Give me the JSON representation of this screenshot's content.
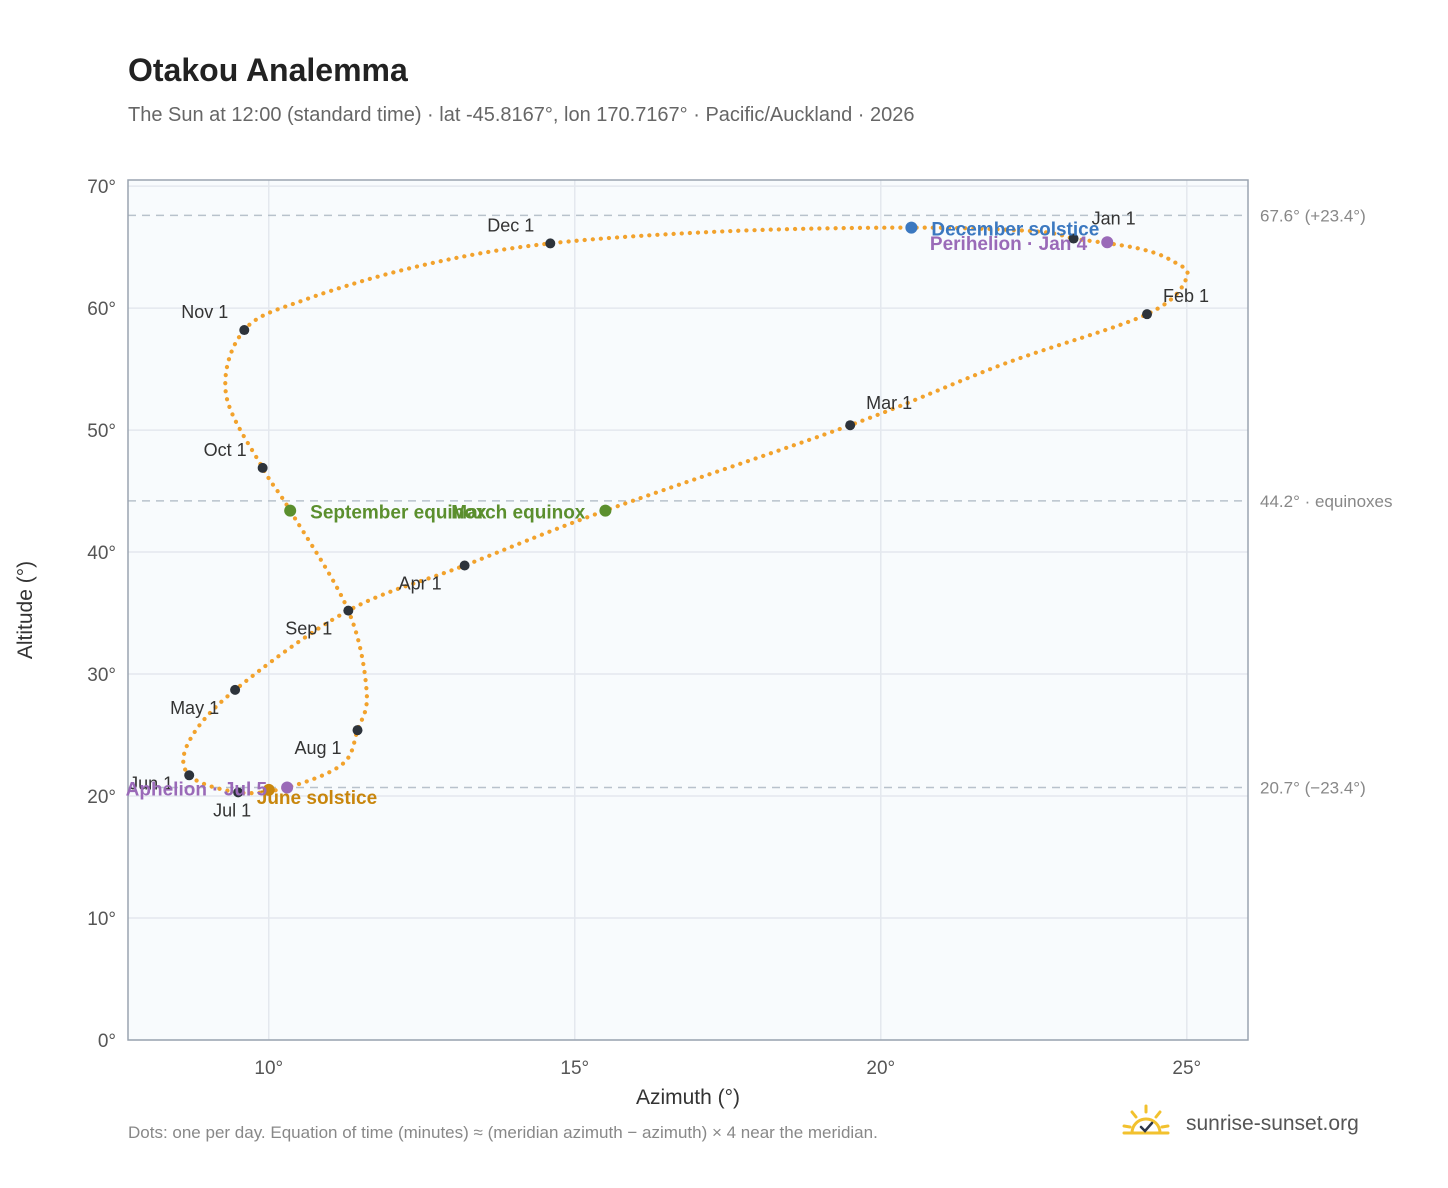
{
  "header": {
    "title": "Otakou Analemma",
    "subtitle": "The Sun at 12:00 (standard time) · lat -45.8167°, lon 170.7167° · Pacific/Auckland · 2026"
  },
  "footer": {
    "note": "Dots: one per day. Equation of time (minutes) ≈ (meridian azimuth − azimuth) × 4 near the meridian.",
    "brand": "sunrise-sunset.org"
  },
  "colors": {
    "curve": "#f2a22c",
    "month_dot": "#2d333b",
    "equinox": "#5b8f2e",
    "solstice_dec": "#3b78c0",
    "solstice_jun": "#c8860d",
    "aphelion_perihelion": "#9a6ab8",
    "grid": "#e4e8ee",
    "plot_bg": "#f8fbfd",
    "ref_line": "#b8c2cc"
  },
  "chart_data": {
    "type": "scatter",
    "title": "Otakou Analemma",
    "xlabel": "Azimuth (°)",
    "ylabel": "Altitude (°)",
    "xlim": [
      7.7,
      26.0
    ],
    "ylim": [
      0,
      70.5
    ],
    "x_ticks": [
      10,
      15,
      20,
      25
    ],
    "x_tick_labels": [
      "10°",
      "15°",
      "20°",
      "25°"
    ],
    "y_ticks": [
      0,
      10,
      20,
      30,
      40,
      50,
      60,
      70
    ],
    "y_tick_labels": [
      "0°",
      "10°",
      "20°",
      "30°",
      "40°",
      "50°",
      "60°",
      "70°"
    ],
    "grid": true,
    "reference_lines": [
      {
        "y": 67.6,
        "label": "67.6° (+23.4°)"
      },
      {
        "y": 44.2,
        "label": "44.2° · equinoxes"
      },
      {
        "y": 20.7,
        "label": "20.7° (−23.4°)"
      }
    ],
    "month_points": [
      {
        "label": "Jan 1",
        "x": 23.15,
        "y": 65.7
      },
      {
        "label": "Feb 1",
        "x": 24.35,
        "y": 59.5
      },
      {
        "label": "Mar 1",
        "x": 19.5,
        "y": 50.4
      },
      {
        "label": "Apr 1",
        "x": 13.2,
        "y": 38.9
      },
      {
        "label": "May 1",
        "x": 9.45,
        "y": 28.7
      },
      {
        "label": "Jun 1",
        "x": 8.7,
        "y": 21.7
      },
      {
        "label": "Jul 1",
        "x": 9.5,
        "y": 20.3
      },
      {
        "label": "Aug 1",
        "x": 11.45,
        "y": 25.4
      },
      {
        "label": "Sep 1",
        "x": 11.3,
        "y": 35.2
      },
      {
        "label": "Oct 1",
        "x": 9.9,
        "y": 46.9
      },
      {
        "label": "Nov 1",
        "x": 9.6,
        "y": 58.2
      },
      {
        "label": "Dec 1",
        "x": 14.6,
        "y": 65.3
      }
    ],
    "events": [
      {
        "label": "December solstice",
        "x": 20.5,
        "y": 66.6,
        "color_key": "solstice_dec"
      },
      {
        "label": "Perihelion · Jan 4",
        "x": 23.7,
        "y": 65.4,
        "color_key": "aphelion_perihelion"
      },
      {
        "label": "March equinox",
        "x": 15.5,
        "y": 43.4,
        "color_key": "equinox"
      },
      {
        "label": "September equinox",
        "x": 10.35,
        "y": 43.4,
        "color_key": "equinox"
      },
      {
        "label": "June solstice",
        "x": 10.0,
        "y": 20.5,
        "color_key": "solstice_jun"
      },
      {
        "label": "Aphelion · Jul 5",
        "x": 10.3,
        "y": 20.7,
        "color_key": "aphelion_perihelion"
      }
    ],
    "path_points": [
      {
        "x": 23.15,
        "y": 65.7
      },
      {
        "x": 24.2,
        "y": 64.9
      },
      {
        "x": 24.75,
        "y": 63.9
      },
      {
        "x": 25.0,
        "y": 62.5
      },
      {
        "x": 24.35,
        "y": 59.5
      },
      {
        "x": 22.0,
        "y": 55.4
      },
      {
        "x": 19.5,
        "y": 50.4
      },
      {
        "x": 15.5,
        "y": 43.4
      },
      {
        "x": 13.2,
        "y": 38.9
      },
      {
        "x": 11.3,
        "y": 35.2
      },
      {
        "x": 9.45,
        "y": 28.7
      },
      {
        "x": 8.7,
        "y": 24.5
      },
      {
        "x": 8.7,
        "y": 21.7
      },
      {
        "x": 9.5,
        "y": 20.3
      },
      {
        "x": 10.3,
        "y": 20.7
      },
      {
        "x": 11.2,
        "y": 22.6
      },
      {
        "x": 11.45,
        "y": 25.4
      },
      {
        "x": 11.6,
        "y": 28.5
      },
      {
        "x": 11.3,
        "y": 35.2
      },
      {
        "x": 10.35,
        "y": 43.4
      },
      {
        "x": 9.9,
        "y": 46.9
      },
      {
        "x": 9.3,
        "y": 53.0
      },
      {
        "x": 9.6,
        "y": 58.2
      },
      {
        "x": 10.6,
        "y": 60.7
      },
      {
        "x": 12.5,
        "y": 63.5
      },
      {
        "x": 14.6,
        "y": 65.3
      },
      {
        "x": 17.5,
        "y": 66.3
      },
      {
        "x": 20.5,
        "y": 66.6
      },
      {
        "x": 22.5,
        "y": 66.3
      },
      {
        "x": 23.15,
        "y": 65.7
      }
    ]
  }
}
